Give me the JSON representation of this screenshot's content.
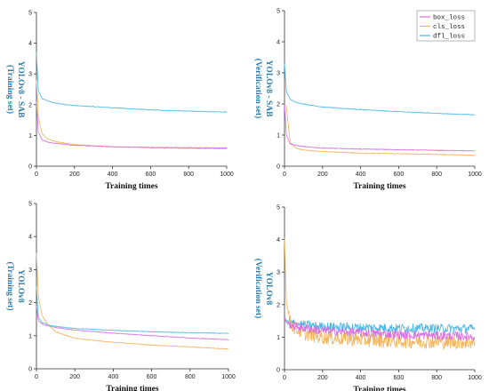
{
  "colors": {
    "box_loss": "#d86ee0",
    "cls_loss": "#f2b55a",
    "dfl_loss": "#4bb8e8",
    "ylabel": "#2a7aa8"
  },
  "legend": {
    "placement": "top-right of upper-right panel",
    "entries": [
      "box_loss",
      "cls_loss",
      "dfl_loss"
    ]
  },
  "chart_data": [
    {
      "type": "line",
      "title": "",
      "ylabel_line1": "YOLOv8 - SAB",
      "ylabel_line2": "(Training set)",
      "xlabel": "Training times",
      "xlim": [
        0,
        1000
      ],
      "ylim": [
        0,
        5
      ],
      "xticks": [
        0,
        200,
        400,
        600,
        800,
        1000
      ],
      "yticks": [
        0,
        1,
        2,
        3,
        4,
        5
      ],
      "noise": 0.012,
      "series": [
        {
          "name": "box_loss",
          "x": [
            0,
            10,
            30,
            60,
            100,
            200,
            400,
            600,
            800,
            1000
          ],
          "values": [
            2.1,
            1.1,
            0.86,
            0.78,
            0.74,
            0.68,
            0.63,
            0.61,
            0.6,
            0.59
          ]
        },
        {
          "name": "cls_loss",
          "x": [
            0,
            10,
            30,
            60,
            100,
            200,
            400,
            600,
            800,
            1000
          ],
          "values": [
            2.8,
            1.6,
            1.05,
            0.88,
            0.8,
            0.7,
            0.63,
            0.6,
            0.58,
            0.57
          ]
        },
        {
          "name": "dfl_loss",
          "x": [
            0,
            10,
            30,
            60,
            100,
            200,
            400,
            600,
            800,
            1000
          ],
          "values": [
            3.7,
            2.45,
            2.2,
            2.12,
            2.05,
            1.97,
            1.9,
            1.83,
            1.79,
            1.76
          ]
        }
      ]
    },
    {
      "type": "line",
      "title": "",
      "ylabel_line1": "YOLOv8 - SAB",
      "ylabel_line2": "(Verification set)",
      "xlabel": "Training times",
      "xlim": [
        0,
        1000
      ],
      "ylim": [
        0,
        5
      ],
      "xticks": [
        0,
        200,
        400,
        600,
        800,
        1000
      ],
      "yticks": [
        0,
        1,
        2,
        3,
        4,
        5
      ],
      "noise": 0.012,
      "series": [
        {
          "name": "box_loss",
          "x": [
            0,
            10,
            30,
            60,
            100,
            200,
            400,
            600,
            800,
            1000
          ],
          "values": [
            2.0,
            1.0,
            0.72,
            0.67,
            0.63,
            0.58,
            0.55,
            0.53,
            0.51,
            0.49
          ]
        },
        {
          "name": "cls_loss",
          "x": [
            0,
            10,
            30,
            60,
            100,
            200,
            400,
            600,
            800,
            1000
          ],
          "values": [
            2.0,
            1.9,
            0.75,
            0.58,
            0.52,
            0.47,
            0.42,
            0.4,
            0.38,
            0.35
          ]
        },
        {
          "name": "dfl_loss",
          "x": [
            0,
            10,
            30,
            60,
            100,
            200,
            400,
            600,
            800,
            1000
          ],
          "values": [
            3.3,
            2.4,
            2.15,
            2.05,
            2.0,
            1.9,
            1.82,
            1.75,
            1.7,
            1.65
          ]
        }
      ]
    },
    {
      "type": "line",
      "title": "",
      "ylabel_line1": "YOLOv8",
      "ylabel_line2": "(Training set)",
      "xlabel": "Training times",
      "xlim": [
        0,
        1000
      ],
      "ylim": [
        0,
        5
      ],
      "xticks": [
        0,
        200,
        400,
        600,
        800,
        1000
      ],
      "yticks": [
        0,
        1,
        2,
        3,
        4,
        5
      ],
      "noise": 0.01,
      "series": [
        {
          "name": "box_loss",
          "x": [
            0,
            10,
            30,
            60,
            100,
            200,
            400,
            600,
            800,
            1000
          ],
          "values": [
            1.9,
            1.45,
            1.35,
            1.3,
            1.25,
            1.17,
            1.08,
            1.0,
            0.93,
            0.88
          ]
        },
        {
          "name": "cls_loss",
          "x": [
            0,
            10,
            30,
            60,
            100,
            200,
            400,
            600,
            800,
            1000
          ],
          "values": [
            3.5,
            2.2,
            1.6,
            1.35,
            1.12,
            0.92,
            0.8,
            0.72,
            0.66,
            0.6
          ]
        },
        {
          "name": "dfl_loss",
          "x": [
            0,
            10,
            30,
            60,
            100,
            200,
            400,
            600,
            800,
            1000
          ],
          "values": [
            2.5,
            1.55,
            1.4,
            1.33,
            1.28,
            1.22,
            1.16,
            1.12,
            1.09,
            1.07
          ]
        }
      ]
    },
    {
      "type": "line",
      "title": "",
      "ylabel_line1": "YOLOv8",
      "ylabel_line2": "(Verification set)",
      "xlabel": "Training times",
      "xlim": [
        0,
        1000
      ],
      "ylim": [
        0,
        5
      ],
      "xticks": [
        0,
        200,
        400,
        600,
        800,
        1000
      ],
      "yticks": [
        0,
        1,
        2,
        3,
        4,
        5
      ],
      "noise": 0.14,
      "series": [
        {
          "name": "box_loss",
          "x": [
            0,
            10,
            30,
            60,
            100,
            200,
            400,
            600,
            800,
            1000
          ],
          "values": [
            1.6,
            1.45,
            1.38,
            1.33,
            1.28,
            1.2,
            1.13,
            1.08,
            1.05,
            1.02
          ]
        },
        {
          "name": "cls_loss",
          "x": [
            0,
            10,
            30,
            60,
            100,
            200,
            400,
            600,
            800,
            1000
          ],
          "values": [
            4.1,
            2.1,
            1.45,
            1.25,
            1.12,
            1.0,
            0.92,
            0.88,
            0.86,
            0.84
          ]
        },
        {
          "name": "dfl_loss",
          "x": [
            0,
            10,
            30,
            60,
            100,
            200,
            400,
            600,
            800,
            1000
          ],
          "values": [
            1.6,
            1.5,
            1.45,
            1.42,
            1.38,
            1.33,
            1.3,
            1.28,
            1.27,
            1.26
          ]
        }
      ]
    }
  ]
}
